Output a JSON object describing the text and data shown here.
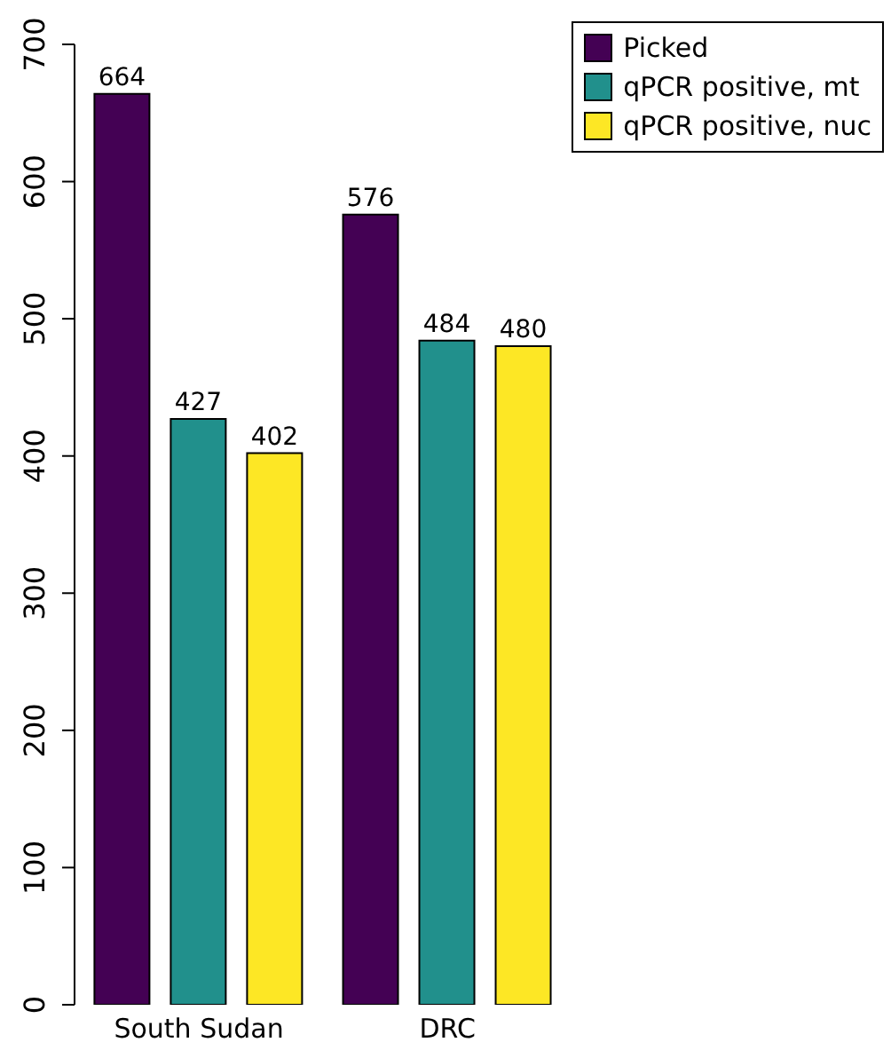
{
  "chart_data": {
    "type": "bar",
    "categories": [
      "South Sudan",
      "DRC"
    ],
    "series": [
      {
        "name": "Picked",
        "color": "#440154",
        "values": [
          664,
          576
        ]
      },
      {
        "name": "qPCR positive, mt",
        "color": "#21908c",
        "values": [
          427,
          484
        ]
      },
      {
        "name": "qPCR positive, nuc",
        "color": "#fde725",
        "values": [
          402,
          480
        ]
      }
    ],
    "ylim": [
      0,
      700
    ],
    "yticks": [
      0,
      100,
      200,
      300,
      400,
      500,
      600,
      700
    ],
    "data_labels": true,
    "legend": "top right",
    "grid": false
  }
}
